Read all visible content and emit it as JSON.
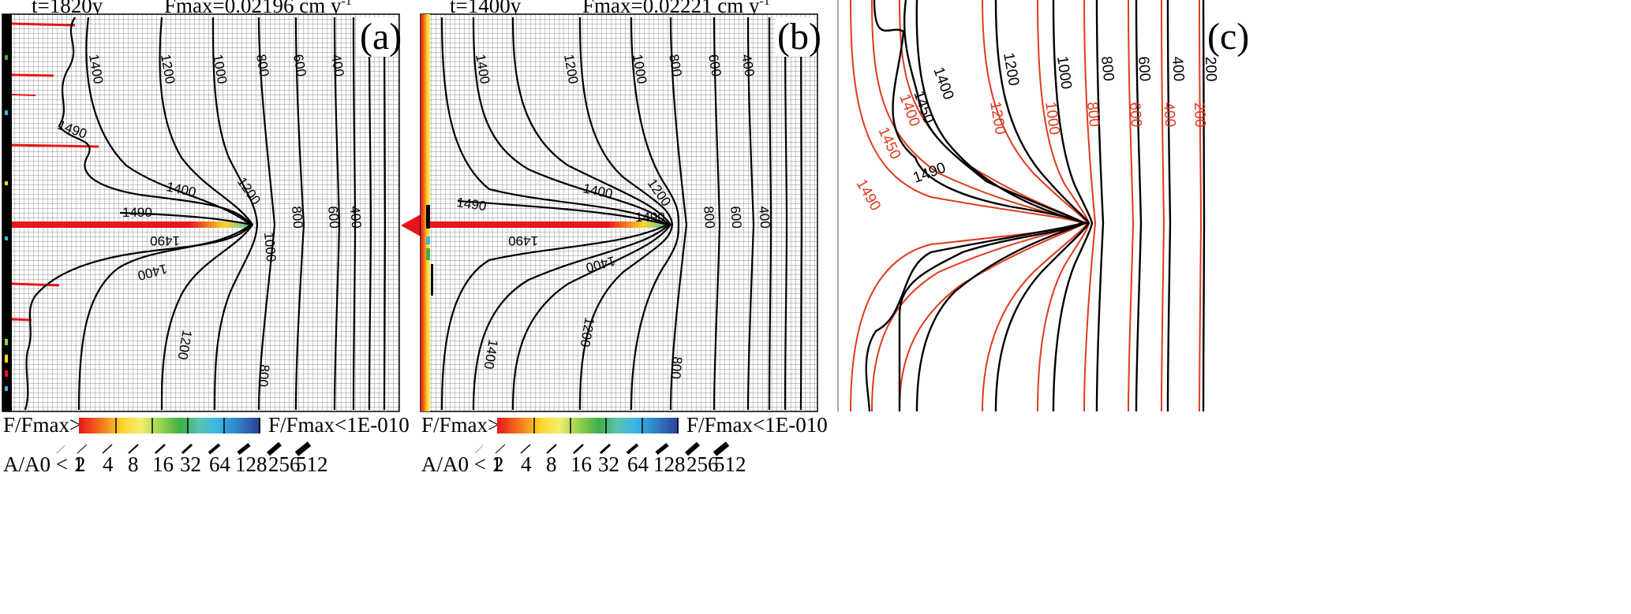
{
  "panels": [
    {
      "id": "a",
      "time_label": "t=1820y",
      "fmax_label": "Fmax=0.02196 cm y",
      "fmax_exponent": "-1",
      "panel_label": "(a)"
    },
    {
      "id": "b",
      "time_label": "t=1400y",
      "fmax_label": "Fmax=0.02221 cm y",
      "fmax_exponent": "-1",
      "panel_label": "(b)"
    },
    {
      "id": "c",
      "panel_label": "(c)"
    }
  ],
  "legend": {
    "flux_left": "F/Fmax>0.1",
    "flux_right": "F/Fmax<1E-010",
    "aperture_prefix": "A/A0 < 1",
    "aperture_values": [
      "2",
      "4",
      "8",
      "16",
      "32",
      "64",
      "128",
      "256",
      "512"
    ],
    "colorbar_colors": [
      "#e6161b",
      "#f4741c",
      "#fbd52a",
      "#f4ee6e",
      "#8fcf4e",
      "#3fae49",
      "#5bc3b0",
      "#39b6e6",
      "#2f7fc3",
      "#2b3f95"
    ]
  },
  "contours_ab": [
    "1490",
    "1400",
    "1200",
    "1000",
    "800",
    "600",
    "400"
  ],
  "contours_c_black": [
    "1490",
    "1450",
    "1400",
    "1200",
    "1000",
    "800",
    "600",
    "400",
    "200"
  ],
  "contours_c_red": [
    "1490",
    "1450",
    "1400",
    "1200",
    "1000",
    "800",
    "600",
    "400",
    "200"
  ],
  "colors": {
    "contour_black": "#000000",
    "contour_red": "#e03a1e",
    "grid_line": "#9a9a9a",
    "fracture_hot": "#e6161b",
    "arrow_red": "#e6161b"
  }
}
